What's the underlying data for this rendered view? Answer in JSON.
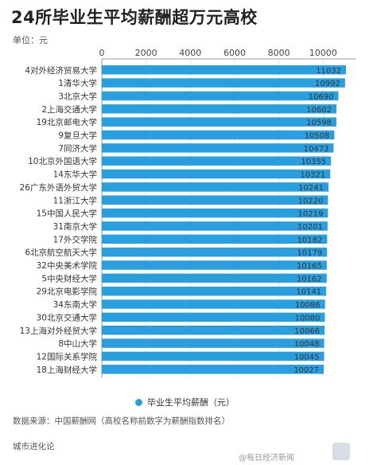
{
  "title": "24所毕业生平均薪酬超万元高校",
  "unit_label": "单位：元",
  "source_note": "数据来源：中国薪酬网（高校名称前数字为薪酬指数排名）",
  "brand": "城市进化论",
  "weibo_mark": "@每日经济新闻",
  "colors": {
    "bar": "#2a9fe0",
    "grid": "#e5e5e5",
    "axis": "#999999"
  },
  "chart_data": {
    "type": "bar",
    "orientation": "horizontal",
    "xlim": [
      0,
      11500
    ],
    "xticks": [
      0,
      2000,
      4000,
      6000,
      8000,
      10000
    ],
    "axis_position": "top",
    "grid": true,
    "legend_position": "bottom",
    "series": [
      {
        "name": "毕业生平均薪酬（元）",
        "values": [
          11032,
          10992,
          10690,
          10602,
          10598,
          10508,
          10473,
          10355,
          10321,
          10241,
          10220,
          10219,
          10201,
          10182,
          10179,
          10165,
          10162,
          10141,
          10086,
          10080,
          10066,
          10048,
          10045,
          10027
        ]
      }
    ],
    "categories": [
      "4对外经济贸易大学",
      "1清华大学",
      "3北京大学",
      "2上海交通大学",
      "19北京邮电大学",
      "9复旦大学",
      "7同济大学",
      "10北京外国语大学",
      "14东华大学",
      "26广东外语外贸大学",
      "11浙江大学",
      "15中国人民大学",
      "31南京大学",
      "17外交学院",
      "6北京航空航天大学",
      "32中央美术学院",
      "5中央财经大学",
      "29北京电影学院",
      "34东南大学",
      "30北京交通大学",
      "13上海对外经贸大学",
      "8中山大学",
      "12国际关系学院",
      "18上海财经大学"
    ]
  }
}
